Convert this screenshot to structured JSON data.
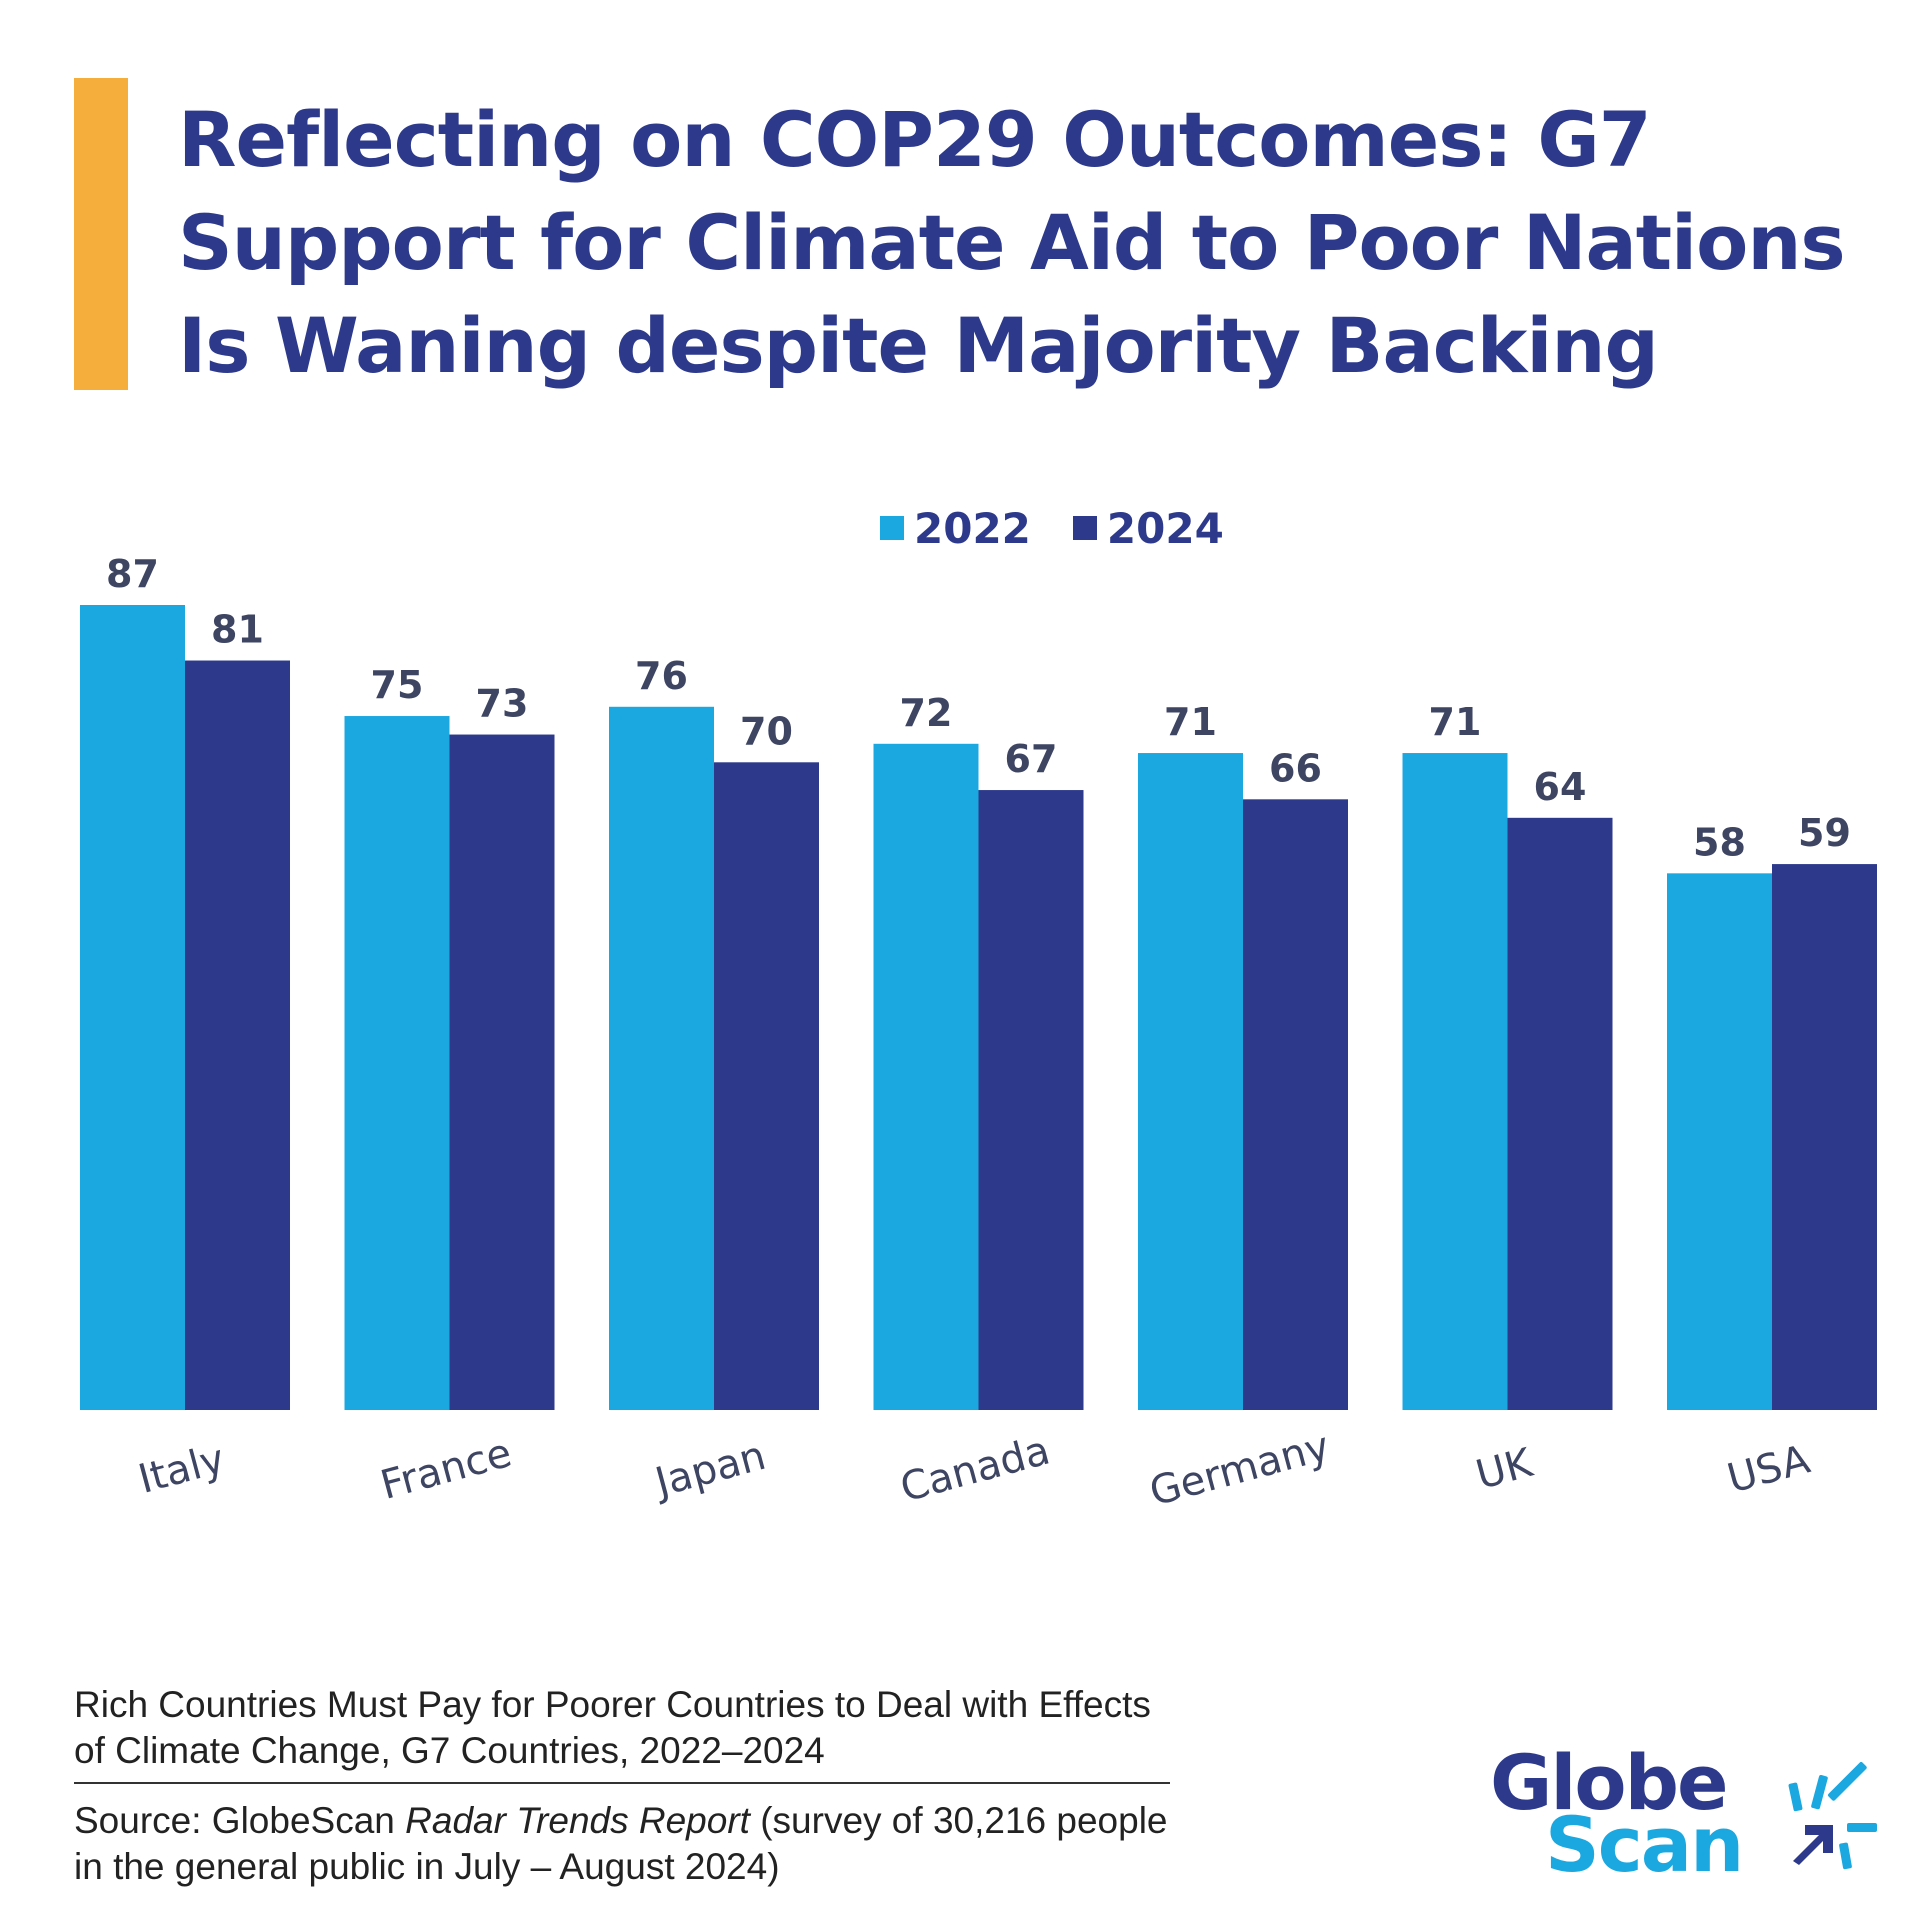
{
  "colors": {
    "accent": "#f5ad3c",
    "title": "#2d3a8c",
    "series_2022": "#1ba8e0",
    "series_2024": "#2d3a8c",
    "axis_text": "#3d4563",
    "logo_dark": "#2d3a8c",
    "logo_light": "#1ba8e0"
  },
  "header": {
    "title_lines": [
      "Reflecting on COP29 Outcomes: G7",
      "Support for Climate Aid to Poor Nations",
      "Is Waning despite Majority Backing"
    ]
  },
  "chart_data": {
    "type": "bar",
    "title": "Reflecting on COP29 Outcomes: G7 Support for Climate Aid to Poor Nations Is Waning despite Majority Backing",
    "xlabel": "",
    "ylabel": "",
    "ylim": [
      0,
      87
    ],
    "grid": false,
    "legend_position": "top-center",
    "categories": [
      "Italy",
      "France",
      "Japan",
      "Canada",
      "Germany",
      "UK",
      "USA"
    ],
    "series": [
      {
        "name": "2022",
        "values": [
          87,
          75,
          76,
          72,
          71,
          71,
          58
        ]
      },
      {
        "name": "2024",
        "values": [
          81,
          73,
          70,
          67,
          66,
          64,
          59
        ]
      }
    ]
  },
  "footer": {
    "subtitle_line1": "Rich Countries Must Pay for Poorer Countries to Deal with Effects",
    "subtitle_line2": "of Climate Change, G7 Countries, 2022–2024",
    "source_prefix": "Source: GlobeScan ",
    "source_italic": "Radar Trends Report",
    "source_suffix": " (survey of 30,216 people",
    "source_line2": "in the general public in July – August 2024)"
  },
  "logo": {
    "line1": "Globe",
    "line2": "Scan",
    "icon": "sunburst-arrow-icon"
  }
}
